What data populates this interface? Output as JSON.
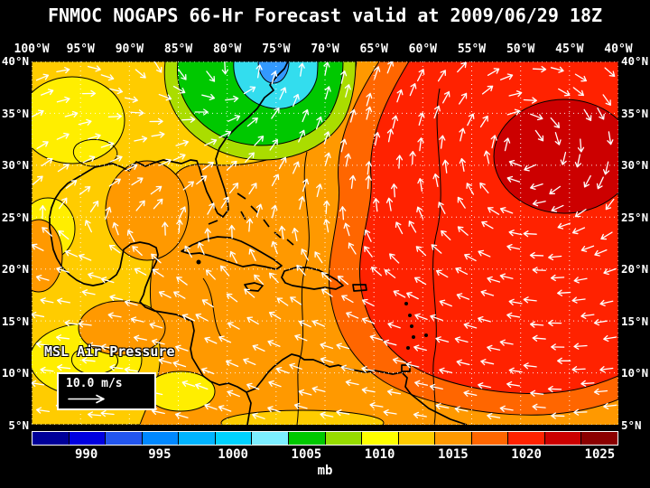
{
  "title": "FNMOC NOGAPS 66-Hr Forecast valid at 2009/06/29 18Z",
  "axes": {
    "lon_labels": [
      "100°W",
      "95°W",
      "90°W",
      "85°W",
      "80°W",
      "75°W",
      "70°W",
      "65°W",
      "60°W",
      "55°W",
      "50°W",
      "45°W",
      "40°W"
    ],
    "lat_labels_left": [
      "40°N",
      "35°N",
      "30°N",
      "25°N",
      "20°N",
      "15°N",
      "10°N",
      "5°N"
    ],
    "lat_labels_right": [
      "40°N",
      "35°N",
      "30°N",
      "25°N",
      "20°N",
      "15°N",
      "10°N",
      "5°N"
    ]
  },
  "overlay": {
    "field_label": "MSL Air Pressure",
    "wind_scale_label": "10.0 m/s"
  },
  "colorbar": {
    "unit": "mb",
    "tick_labels": [
      "990",
      "995",
      "1000",
      "1005",
      "1010",
      "1015",
      "1020",
      "1025"
    ],
    "colors": [
      "#000099",
      "#0000e0",
      "#2255ee",
      "#0088ff",
      "#00b4ff",
      "#00d2ff",
      "#7ceeff",
      "#00c800",
      "#96dc00",
      "#ffff00",
      "#ffcc00",
      "#ff9900",
      "#ff6600",
      "#ff2200",
      "#cc0000",
      "#8b0000"
    ]
  },
  "chart_data": {
    "type": "heatmap",
    "title": "FNMOC NOGAPS 66-Hr Forecast valid at 2009/06/29 18Z",
    "field": "MSL Air Pressure",
    "units": "mb",
    "x_axis": {
      "label": "longitude",
      "ticks": [
        "100°W",
        "95°W",
        "90°W",
        "85°W",
        "80°W",
        "75°W",
        "70°W",
        "65°W",
        "60°W",
        "55°W",
        "50°W",
        "45°W",
        "40°W"
      ]
    },
    "y_axis": {
      "label": "latitude",
      "ticks": [
        "40°N",
        "35°N",
        "30°N",
        "25°N",
        "20°N",
        "15°N",
        "10°N",
        "5°N"
      ]
    },
    "color_scale": {
      "ticks_mb": [
        990,
        995,
        1000,
        1005,
        1010,
        1015,
        1020,
        1025
      ],
      "colors": [
        "#000099",
        "#0000e0",
        "#2255ee",
        "#0088ff",
        "#00b4ff",
        "#00d2ff",
        "#7ceeff",
        "#00c800",
        "#96dc00",
        "#ffff00",
        "#ffcc00",
        "#ff9900",
        "#ff6600",
        "#ff2200",
        "#cc0000",
        "#8b0000"
      ]
    },
    "features": [
      {
        "feature": "low pressure area",
        "location": "near US east coast, ~76°W 38°N",
        "approx_value_mb": 1002
      },
      {
        "feature": "high pressure area",
        "location": "west-central subtropical Atlantic, ~52°W 30°N",
        "approx_value_mb": 1021
      },
      {
        "feature": "background field",
        "note": "broad 1010-1015 mb over Gulf of Mexico and Caribbean, 1007-1012 mb over western Gulf and Mexico"
      }
    ],
    "vector_overlay": {
      "type": "wind arrows",
      "reference_speed": "10.0 m/s",
      "pattern": "anticyclonic (clockwise) flow around Atlantic high with trade easterlies across the Caribbean"
    }
  }
}
